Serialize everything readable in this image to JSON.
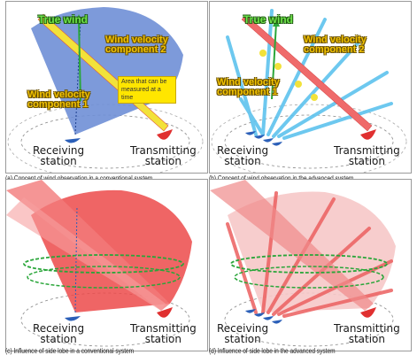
{
  "panels": {
    "a": {
      "true_wind": "True wind",
      "component_2": [
        "Wind velocity",
        "component 2"
      ],
      "component_1": [
        "Wind velocity",
        "component 1"
      ],
      "callout": [
        "Area that can be",
        "measured at a time"
      ],
      "receiving": [
        "Receiving",
        "station"
      ],
      "transmitting": [
        "Transmitting",
        "station"
      ],
      "caption": "(a) Concept of wind observation in a conventional system"
    },
    "b": {
      "true_wind": "True wind",
      "component_2": [
        "Wind velocity",
        "component 2"
      ],
      "component_1": [
        "Wind velocity",
        "component 1"
      ],
      "receiving": [
        "Receiving",
        "station"
      ],
      "transmitting": [
        "Transmitting",
        "station"
      ],
      "caption": "(b) Concept of wind observation in the advanced system"
    },
    "c": {
      "receiving": [
        "Receiving",
        "station"
      ],
      "transmitting": [
        "Transmitting",
        "station"
      ],
      "caption": "(c) Influence of side lobe in a conventional system"
    },
    "d": {
      "receiving": [
        "Receiving",
        "station"
      ],
      "transmitting": [
        "Transmitting",
        "station"
      ],
      "caption": "(d) Influence of side lobe in the advanced system"
    }
  },
  "colors": {
    "blue_beam": "#6f8fd6",
    "light_blue_beams": "#5ec3ee",
    "red_beam": "#ec4a4a",
    "yellow_beam": "#f2e23a",
    "green_ellipse": "#2aa63a",
    "receiver": "#2b5fb8",
    "transmitter": "#e03030"
  }
}
